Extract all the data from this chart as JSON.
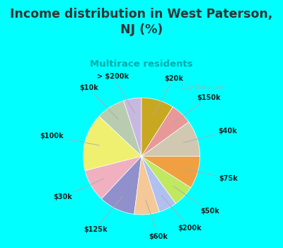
{
  "title": "Income distribution in West Paterson,\nNJ (%)",
  "subtitle": "Multirace residents",
  "title_color": "#333333",
  "subtitle_color": "#00aaaa",
  "bg_cyan": "#00ffff",
  "bg_inner": "#e0f5ee",
  "watermark": "City-Data.com",
  "labels": [
    "> $200k",
    "$10k",
    "$100k",
    "$30k",
    "$125k",
    "$60k",
    "$200k",
    "$50k",
    "$75k",
    "$40k",
    "$150k",
    "$20k"
  ],
  "values": [
    5,
    8,
    16,
    9,
    10,
    7,
    5,
    6,
    9,
    10,
    6,
    9
  ],
  "colors": [
    "#c8b8e0",
    "#b8ccb0",
    "#f0f070",
    "#f0b0c0",
    "#9090cc",
    "#f5c898",
    "#b0c0f0",
    "#c0e860",
    "#f0a040",
    "#d0c8b0",
    "#e89898",
    "#c8a820"
  ]
}
